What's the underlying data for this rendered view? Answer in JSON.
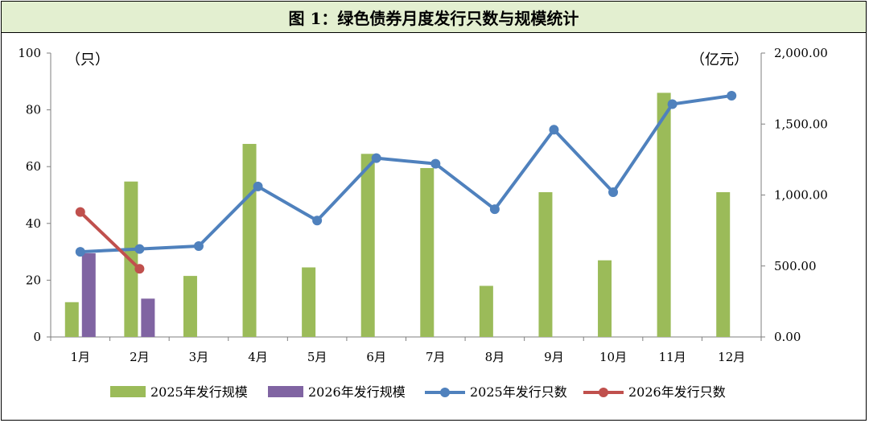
{
  "title": "图 1：绿色债券月度发行只数与规模统计",
  "chart_data": {
    "type": "bar",
    "categories": [
      "1月",
      "2月",
      "3月",
      "4月",
      "5月",
      "6月",
      "7月",
      "8月",
      "9月",
      "10月",
      "11月",
      "12月"
    ],
    "left_axis": {
      "unit": "（只）",
      "ylim": [
        0,
        100
      ],
      "ticks": [
        "0",
        "20",
        "40",
        "60",
        "80",
        "100"
      ]
    },
    "right_axis": {
      "unit": "（亿元）",
      "ylim": [
        0,
        2000
      ],
      "ticks": [
        "0.00",
        "500.00",
        "1,000.00",
        "1,500.00",
        "2,000.00"
      ]
    },
    "series": [
      {
        "name": "2025年发行规模",
        "type": "bar",
        "axis": "right",
        "color": "#9bbb59",
        "values": [
          245,
          1095,
          430,
          1360,
          490,
          1290,
          1190,
          360,
          1020,
          540,
          1720,
          1020
        ]
      },
      {
        "name": "2026年发行规模",
        "type": "bar",
        "axis": "right",
        "color": "#8064a2",
        "values": [
          590,
          270,
          null,
          null,
          null,
          null,
          null,
          null,
          null,
          null,
          null,
          null
        ]
      },
      {
        "name": "2025年发行只数",
        "type": "line",
        "axis": "left",
        "color": "#4f81bd",
        "values": [
          30,
          31,
          32,
          53,
          41,
          63,
          61,
          45,
          73,
          51,
          82,
          85
        ]
      },
      {
        "name": "2026年发行只数",
        "type": "line",
        "axis": "left",
        "color": "#c0504d",
        "values": [
          44,
          24,
          null,
          null,
          null,
          null,
          null,
          null,
          null,
          null,
          null,
          null
        ]
      }
    ],
    "legend_position": "bottom",
    "grid": false
  }
}
